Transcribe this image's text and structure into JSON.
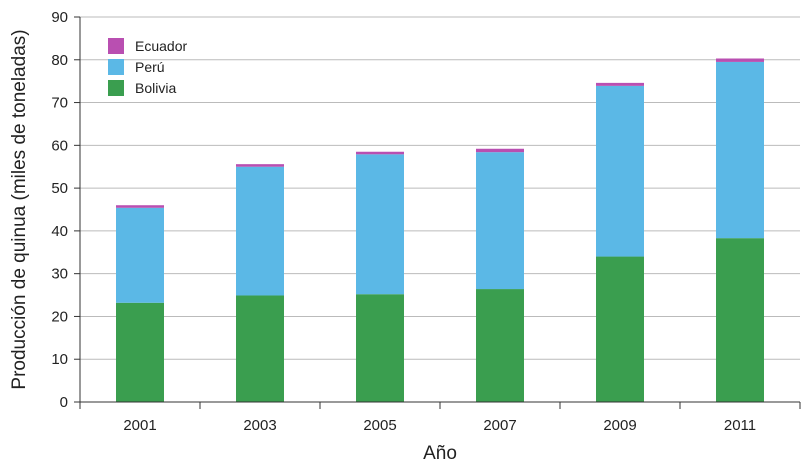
{
  "chart_data": {
    "type": "bar",
    "stacked": true,
    "title": "",
    "xlabel": "Año",
    "ylabel": "Producción de quinua (miles de toneladas)",
    "ylim": [
      0,
      90
    ],
    "yticks": [
      0,
      10,
      20,
      30,
      40,
      50,
      60,
      70,
      80,
      90
    ],
    "categories": [
      "2001",
      "2003",
      "2005",
      "2007",
      "2009",
      "2011"
    ],
    "series": [
      {
        "name": "Bolivia",
        "color": "#3a9e4f",
        "values": [
          23.2,
          24.9,
          25.2,
          26.4,
          34.0,
          38.3
        ]
      },
      {
        "name": "Perú",
        "color": "#5bb8e6",
        "values": [
          22.2,
          30.1,
          32.7,
          32.0,
          39.9,
          41.2
        ]
      },
      {
        "name": "Ecuador",
        "color": "#b94fb1",
        "values": [
          0.6,
          0.6,
          0.6,
          0.8,
          0.7,
          0.8
        ]
      }
    ],
    "legend": {
      "position": "top-left",
      "order": [
        "Ecuador",
        "Perú",
        "Bolivia"
      ]
    },
    "grid": true
  }
}
